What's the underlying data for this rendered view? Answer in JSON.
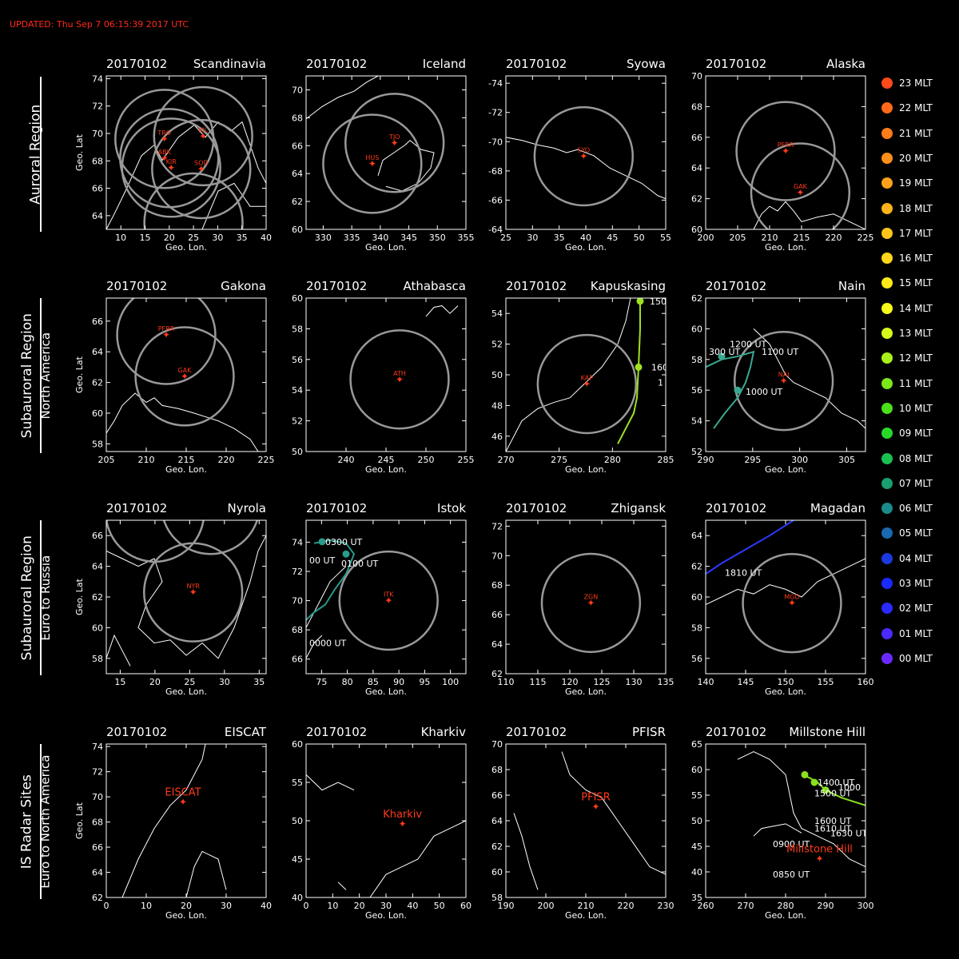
{
  "updated": "UPDATED: Thu Sep  7 06:15:39 2017 UTC",
  "regions": [
    {
      "line1": "Auroral Region",
      "line2": ""
    },
    {
      "line1": "Subauroral Region",
      "line2": "North America"
    },
    {
      "line1": "Subauroral Region",
      "line2": "Euro to Russia"
    },
    {
      "line1": "IS Radar Sites",
      "line2": "Euro to North America"
    }
  ],
  "legend": [
    {
      "label": "23 MLT",
      "color": "#ff4a1a"
    },
    {
      "label": "22 MLT",
      "color": "#ff6a1a"
    },
    {
      "label": "21 MLT",
      "color": "#ff7c1a"
    },
    {
      "label": "20 MLT",
      "color": "#ff8e1a"
    },
    {
      "label": "19 MLT",
      "color": "#ffa01a"
    },
    {
      "label": "18 MLT",
      "color": "#ffb21a"
    },
    {
      "label": "17 MLT",
      "color": "#ffc41a"
    },
    {
      "label": "16 MLT",
      "color": "#ffd61a"
    },
    {
      "label": "15 MLT",
      "color": "#ffe81a"
    },
    {
      "label": "14 MLT",
      "color": "#f8f81a"
    },
    {
      "label": "13 MLT",
      "color": "#d6f81a"
    },
    {
      "label": "12 MLT",
      "color": "#a8f01a"
    },
    {
      "label": "11 MLT",
      "color": "#7ae81a"
    },
    {
      "label": "10 MLT",
      "color": "#4ae01a"
    },
    {
      "label": "09 MLT",
      "color": "#2ad82a"
    },
    {
      "label": "08 MLT",
      "color": "#1ac050"
    },
    {
      "label": "07 MLT",
      "color": "#1aa070"
    },
    {
      "label": "06 MLT",
      "color": "#1a8a8a"
    },
    {
      "label": "05 MLT",
      "color": "#1a6ab0"
    },
    {
      "label": "04 MLT",
      "color": "#1a3ae0"
    },
    {
      "label": "03 MLT",
      "color": "#1a2aff"
    },
    {
      "label": "02 MLT",
      "color": "#2a2aff"
    },
    {
      "label": "01 MLT",
      "color": "#4a2aff"
    },
    {
      "label": "00 MLT",
      "color": "#6a2aff"
    }
  ],
  "chart_data": [
    {
      "type": "scatter",
      "date": "20170102",
      "title": "Scandinavia",
      "xlabel": "Geo. Lon.",
      "ylabel": "Geo. Lat",
      "xlim": [
        7,
        40
      ],
      "ylim": [
        63,
        74.2
      ],
      "xticks": [
        10,
        15,
        20,
        25,
        30,
        35,
        40
      ],
      "yticks": [
        64,
        66,
        68,
        70,
        72,
        74
      ],
      "stations": [
        {
          "name": "TRO",
          "lon": 19,
          "lat": 69.6
        },
        {
          "name": "KIL",
          "lon": 27,
          "lat": 69.8
        },
        {
          "name": "ABK",
          "lon": 19,
          "lat": 68.2
        },
        {
          "name": "KIR",
          "lon": 20.4,
          "lat": 67.5
        },
        {
          "name": "SOD",
          "lon": 26.6,
          "lat": 67.4
        }
      ],
      "circles": [
        {
          "lon": 19,
          "lat": 69.6
        },
        {
          "lon": 27,
          "lat": 69.8
        },
        {
          "lon": 20.4,
          "lat": 67.5
        },
        {
          "lon": 26.6,
          "lat": 67.4
        },
        {
          "lon": 20,
          "lat": 68.2
        },
        {
          "lon": 25,
          "lat": 63.5
        }
      ]
    },
    {
      "type": "scatter",
      "date": "20170102",
      "title": "Iceland",
      "xlabel": "Geo. Lon.",
      "ylabel": "",
      "xlim": [
        327,
        355
      ],
      "ylim": [
        60,
        71
      ],
      "xticks": [
        330,
        335,
        340,
        345,
        350,
        355
      ],
      "yticks": [
        60,
        62,
        64,
        66,
        68,
        70
      ],
      "stations": [
        {
          "name": "TJO",
          "lon": 342.5,
          "lat": 66.2
        },
        {
          "name": "HUS",
          "lon": 338.6,
          "lat": 64.7
        }
      ],
      "circles": [
        {
          "lon": 342.5,
          "lat": 66.2
        },
        {
          "lon": 338.6,
          "lat": 64.7
        }
      ]
    },
    {
      "type": "scatter",
      "date": "20170102",
      "title": "Syowa",
      "xlabel": "Geo. Lon.",
      "ylabel": "",
      "xlim": [
        25,
        55
      ],
      "ylim": [
        -64,
        -74.5
      ],
      "xticks": [
        25,
        30,
        35,
        40,
        45,
        50,
        55
      ],
      "yticks": [
        -74,
        -72,
        -70,
        -68,
        -66,
        -64
      ],
      "stations": [
        {
          "name": "SYO",
          "lon": 39.6,
          "lat": -69
        }
      ],
      "circles": [
        {
          "lon": 39.6,
          "lat": -69
        }
      ]
    },
    {
      "type": "scatter",
      "date": "20170102",
      "title": "Alaska",
      "xlabel": "Geo. Lon.",
      "ylabel": "",
      "xlim": [
        200,
        225
      ],
      "ylim": [
        60,
        70
      ],
      "xticks": [
        200,
        205,
        210,
        215,
        220,
        225
      ],
      "yticks": [
        60,
        62,
        64,
        66,
        68,
        70
      ],
      "stations": [
        {
          "name": "PFRR",
          "lon": 212.5,
          "lat": 65.1
        },
        {
          "name": "GAK",
          "lon": 214.8,
          "lat": 62.4
        }
      ],
      "circles": [
        {
          "lon": 212.5,
          "lat": 65.1
        },
        {
          "lon": 214.8,
          "lat": 62.4
        }
      ]
    },
    {
      "type": "scatter",
      "date": "20170102",
      "title": "Gakona",
      "xlabel": "Geo. Lon.",
      "ylabel": "Geo. Lat",
      "xlim": [
        205,
        225
      ],
      "ylim": [
        57.5,
        67.5
      ],
      "xticks": [
        205,
        210,
        215,
        220,
        225
      ],
      "yticks": [
        58,
        60,
        62,
        64,
        66
      ],
      "stations": [
        {
          "name": "PFRR",
          "lon": 212.5,
          "lat": 65.1
        },
        {
          "name": "GAK",
          "lon": 214.8,
          "lat": 62.4
        }
      ],
      "circles": [
        {
          "lon": 212.5,
          "lat": 65.1
        },
        {
          "lon": 214.8,
          "lat": 62.4
        }
      ]
    },
    {
      "type": "scatter",
      "date": "20170102",
      "title": "Athabasca",
      "xlabel": "Geo. Lon.",
      "ylabel": "",
      "xlim": [
        235,
        255
      ],
      "ylim": [
        50,
        60
      ],
      "xticks": [
        240,
        245,
        250,
        255
      ],
      "yticks": [
        50,
        52,
        54,
        56,
        58,
        60
      ],
      "stations": [
        {
          "name": "ATH",
          "lon": 246.7,
          "lat": 54.7
        }
      ],
      "circles": [
        {
          "lon": 246.7,
          "lat": 54.7
        }
      ]
    },
    {
      "type": "scatter",
      "date": "20170102",
      "title": "Kapuskasing",
      "xlabel": "Geo. Lon.",
      "ylabel": "",
      "xlim": [
        270,
        285
      ],
      "ylim": [
        45,
        55
      ],
      "xticks": [
        270,
        275,
        280,
        285
      ],
      "yticks": [
        46,
        48,
        50,
        52,
        54
      ],
      "stations": [
        {
          "name": "KAP",
          "lon": 277.6,
          "lat": 49.4
        }
      ],
      "circles": [
        {
          "lon": 277.6,
          "lat": 49.4
        }
      ],
      "track_labels": [
        "150",
        "160",
        "1"
      ]
    },
    {
      "type": "scatter",
      "date": "20170102",
      "title": "Nain",
      "xlabel": "Geo. Lon.",
      "ylabel": "",
      "xlim": [
        290,
        307
      ],
      "ylim": [
        52,
        62
      ],
      "xticks": [
        290,
        295,
        300,
        305
      ],
      "yticks": [
        52,
        54,
        56,
        58,
        60,
        62
      ],
      "stations": [
        {
          "name": "NAI",
          "lon": 298.3,
          "lat": 56.6
        }
      ],
      "circles": [
        {
          "lon": 298.3,
          "lat": 56.6
        }
      ],
      "track_labels": [
        "1200 UT",
        "300 UT",
        "1100 UT",
        "1000 UT"
      ]
    },
    {
      "type": "scatter",
      "date": "20170102",
      "title": "Nyrola",
      "xlabel": "Geo. Lon.",
      "ylabel": "Geo. Lat",
      "xlim": [
        13,
        36
      ],
      "ylim": [
        57,
        67
      ],
      "xticks": [
        15,
        20,
        25,
        30,
        35
      ],
      "yticks": [
        58,
        60,
        62,
        64,
        66
      ],
      "stations": [
        {
          "name": "NYR",
          "lon": 25.5,
          "lat": 62.3
        }
      ],
      "circles": [
        {
          "lon": 25.5,
          "lat": 62.3
        },
        {
          "lon": 20,
          "lat": 67.5
        },
        {
          "lon": 28,
          "lat": 68
        }
      ]
    },
    {
      "type": "scatter",
      "date": "20170102",
      "title": "Istok",
      "xlabel": "Geo. Lon.",
      "ylabel": "",
      "xlim": [
        72,
        103
      ],
      "ylim": [
        65,
        75.5
      ],
      "xticks": [
        75,
        80,
        85,
        90,
        95,
        100
      ],
      "yticks": [
        66,
        68,
        70,
        72,
        74
      ],
      "stations": [
        {
          "name": "ITK",
          "lon": 88,
          "lat": 70
        }
      ],
      "circles": [
        {
          "lon": 88,
          "lat": 70
        }
      ],
      "track_labels": [
        "0300 UT",
        "00 UT",
        "0100 UT",
        "0000 UT"
      ]
    },
    {
      "type": "scatter",
      "date": "20170102",
      "title": "Zhigansk",
      "xlabel": "Geo. Lon.",
      "ylabel": "",
      "xlim": [
        110,
        135
      ],
      "ylim": [
        62,
        72.4
      ],
      "xticks": [
        110,
        115,
        120,
        125,
        130,
        135
      ],
      "yticks": [
        62,
        64,
        66,
        68,
        70,
        72
      ],
      "stations": [
        {
          "name": "ZGN",
          "lon": 123.3,
          "lat": 66.8
        }
      ],
      "circles": [
        {
          "lon": 123.3,
          "lat": 66.8
        }
      ]
    },
    {
      "type": "scatter",
      "date": "20170102",
      "title": "Magadan",
      "xlabel": "Geo. Lon.",
      "ylabel": "",
      "xlim": [
        140,
        160
      ],
      "ylim": [
        55,
        65
      ],
      "xticks": [
        140,
        145,
        150,
        155,
        160
      ],
      "yticks": [
        56,
        58,
        60,
        62,
        64
      ],
      "stations": [
        {
          "name": "MGD",
          "lon": 150.8,
          "lat": 59.6
        }
      ],
      "circles": [
        {
          "lon": 150.8,
          "lat": 59.6
        }
      ],
      "track_labels": [
        "1810 UT"
      ]
    },
    {
      "type": "scatter",
      "date": "20170102",
      "title": "EISCAT",
      "xlabel": "Geo. Lon.",
      "ylabel": "Geo. Lat",
      "xlim": [
        0,
        40
      ],
      "ylim": [
        62,
        74.2
      ],
      "xticks": [
        0,
        10,
        20,
        30,
        40
      ],
      "yticks": [
        62,
        64,
        66,
        68,
        70,
        72,
        74
      ],
      "stations": [
        {
          "name": "EISCAT",
          "lon": 19.2,
          "lat": 69.6
        }
      ],
      "circles": []
    },
    {
      "type": "scatter",
      "date": "20170102",
      "title": "Kharkiv",
      "xlabel": "Geo. Lon.",
      "ylabel": "",
      "xlim": [
        0,
        60
      ],
      "ylim": [
        40,
        60
      ],
      "xticks": [
        0,
        10,
        20,
        30,
        40,
        50,
        60
      ],
      "yticks": [
        40,
        45,
        50,
        55,
        60
      ],
      "stations": [
        {
          "name": "Kharkiv",
          "lon": 36.2,
          "lat": 49.6
        }
      ],
      "circles": []
    },
    {
      "type": "scatter",
      "date": "20170102",
      "title": "PFISR",
      "xlabel": "Geo. Lon.",
      "ylabel": "",
      "xlim": [
        190,
        230
      ],
      "ylim": [
        58,
        70
      ],
      "xticks": [
        190,
        200,
        210,
        220,
        230
      ],
      "yticks": [
        58,
        60,
        62,
        64,
        66,
        68,
        70
      ],
      "stations": [
        {
          "name": "PFISR",
          "lon": 212.5,
          "lat": 65.1
        }
      ],
      "circles": []
    },
    {
      "type": "scatter",
      "date": "20170102",
      "title": "Millstone Hill",
      "xlabel": "Geo. Lon.",
      "ylabel": "",
      "xlim": [
        260,
        300
      ],
      "ylim": [
        35,
        65
      ],
      "xticks": [
        260,
        270,
        280,
        290,
        300
      ],
      "yticks": [
        35,
        40,
        45,
        50,
        55,
        60,
        65
      ],
      "stations": [
        {
          "name": "Millstone Hill",
          "lon": 288.5,
          "lat": 42.6
        }
      ],
      "circles": [],
      "track_labels": [
        "1400 UT",
        "1500 UT",
        "1000",
        "1600 UT",
        "1610 UT",
        "1630 UT",
        "0900 UT",
        "0850 UT"
      ]
    }
  ]
}
